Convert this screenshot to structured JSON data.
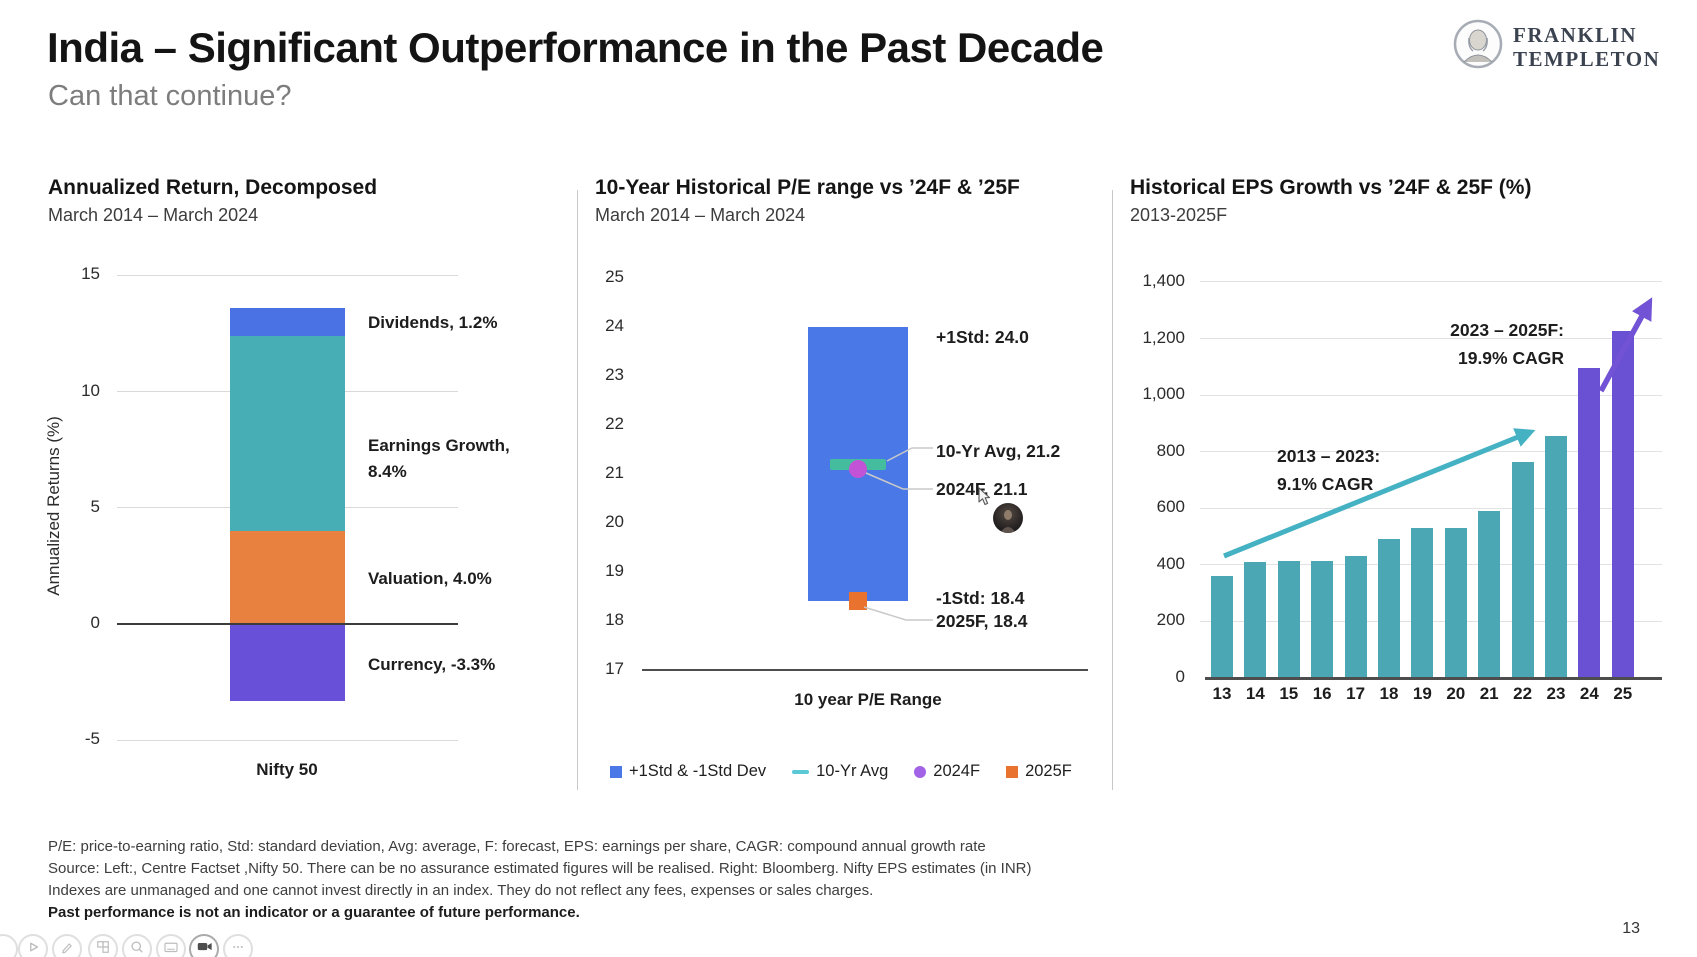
{
  "page": {
    "title": "India – Significant Outperformance in the Past Decade",
    "subtitle": "Can that continue?",
    "page_number": "13"
  },
  "logo": {
    "brand_line1": "FRANKLIN",
    "brand_line2": "TEMPLETON"
  },
  "footnotes": {
    "line1": "P/E: price-to-earning ratio, Std: standard deviation, Avg: average, F: forecast, EPS: earnings per share, CAGR: compound annual growth rate",
    "line2": "Source: Left:, Centre Factset ,Nifty 50. There can be no assurance estimated figures will be realised. Right: Bloomberg. Nifty EPS estimates (in INR)",
    "line3": "Indexes are unmanaged and one cannot invest directly in an index. They do not reflect any fees, expenses or sales charges.",
    "line4": "Past performance is not an indicator or a guarantee of future performance."
  },
  "toolbar": {
    "buttons": [
      "hidden",
      "play",
      "pen",
      "grid",
      "zoom",
      "slideshow",
      "camera",
      "more"
    ]
  },
  "chart_data": [
    {
      "id": "annualized_return_decomposed",
      "type": "bar",
      "variant": "stacked_single_column",
      "title": "Annualized Return, Decomposed",
      "subtitle": "March 2014 – March 2024",
      "ylabel": "Annualized Returns (%)",
      "category": "Nifty 50",
      "ylim": [
        -5,
        15
      ],
      "yticks": [
        15,
        10,
        5,
        0,
        -5
      ],
      "grid": true,
      "segments": [
        {
          "name": "Dividends",
          "value": 1.2,
          "label": "Dividends, 1.2%",
          "color": "#4a72e4"
        },
        {
          "name": "Earnings Growth",
          "value": 8.4,
          "label": "Earnings Growth, 8.4%",
          "color": "#46aeb4"
        },
        {
          "name": "Valuation",
          "value": 4.0,
          "label": "Valuation, 4.0%",
          "color": "#e8813f"
        },
        {
          "name": "Currency",
          "value": -3.3,
          "label": "Currency, -3.3%",
          "color": "#6950d8"
        }
      ]
    },
    {
      "id": "pe_range",
      "type": "bar",
      "variant": "floating_range_column",
      "title": "10-Year Historical P/E range vs ’24F & ’25F",
      "subtitle": "March 2014 – March 2024",
      "xlabel": "10 year P/E Range",
      "ylim": [
        17,
        25
      ],
      "yticks": [
        25,
        24,
        23,
        22,
        21,
        20,
        19,
        18,
        17
      ],
      "grid": false,
      "range": {
        "high": 24.0,
        "low": 18.4,
        "color": "#4a78e6"
      },
      "points": [
        {
          "name": "+1Std",
          "value": 24.0,
          "label": "+1Std: 24.0",
          "marker": "none"
        },
        {
          "name": "10-Yr Avg",
          "value": 21.2,
          "label": "10-Yr Avg, 21.2",
          "marker": "dash",
          "color": "#43bd9e"
        },
        {
          "name": "2024F",
          "value": 21.1,
          "label": "2024F, 21.1",
          "marker": "circle",
          "color": "#c353d6"
        },
        {
          "name": "-1Std",
          "value": 18.4,
          "label": "-1Std: 18.4",
          "marker": "none"
        },
        {
          "name": "2025F",
          "value": 18.4,
          "label": "2025F, 18.4",
          "marker": "square",
          "color": "#e8722e"
        }
      ],
      "legend_position": "bottom",
      "legend": [
        {
          "label": "+1Std & -1Std Dev",
          "marker": "square",
          "color": "#4a78e6"
        },
        {
          "label": "10-Yr Avg",
          "marker": "dash",
          "color": "#5bc8d6"
        },
        {
          "label": "2024F",
          "marker": "circle",
          "color": "#a263e6"
        },
        {
          "label": "2025F",
          "marker": "square",
          "color": "#e8722e"
        }
      ]
    },
    {
      "id": "historical_eps_growth",
      "type": "bar",
      "title": "Historical EPS Growth vs ’24F & 25F (%)",
      "subtitle": "2013-2025F",
      "categories": [
        "13",
        "14",
        "15",
        "16",
        "17",
        "18",
        "19",
        "20",
        "21",
        "22",
        "23",
        "24",
        "25"
      ],
      "values": [
        360,
        410,
        415,
        412,
        430,
        490,
        530,
        530,
        590,
        765,
        855,
        1095,
        1225
      ],
      "colors": [
        "#4ba7b3",
        "#4ba7b3",
        "#4ba7b3",
        "#4ba7b3",
        "#4ba7b3",
        "#4ba7b3",
        "#4ba7b3",
        "#4ba7b3",
        "#4ba7b3",
        "#4ba7b3",
        "#4ba7b3",
        "#6a50d2",
        "#6a50d2"
      ],
      "ylim": [
        0,
        1400
      ],
      "yticks": [
        1400,
        1200,
        1000,
        800,
        600,
        400,
        200,
        0
      ],
      "grid": true,
      "annotations": [
        {
          "line1": "2013 – 2023:",
          "line2": "9.1% CAGR",
          "color": "#44b2c2"
        },
        {
          "line1": "2023 – 2025F:",
          "line2": "19.9% CAGR",
          "color": "#7253d6"
        }
      ]
    }
  ]
}
